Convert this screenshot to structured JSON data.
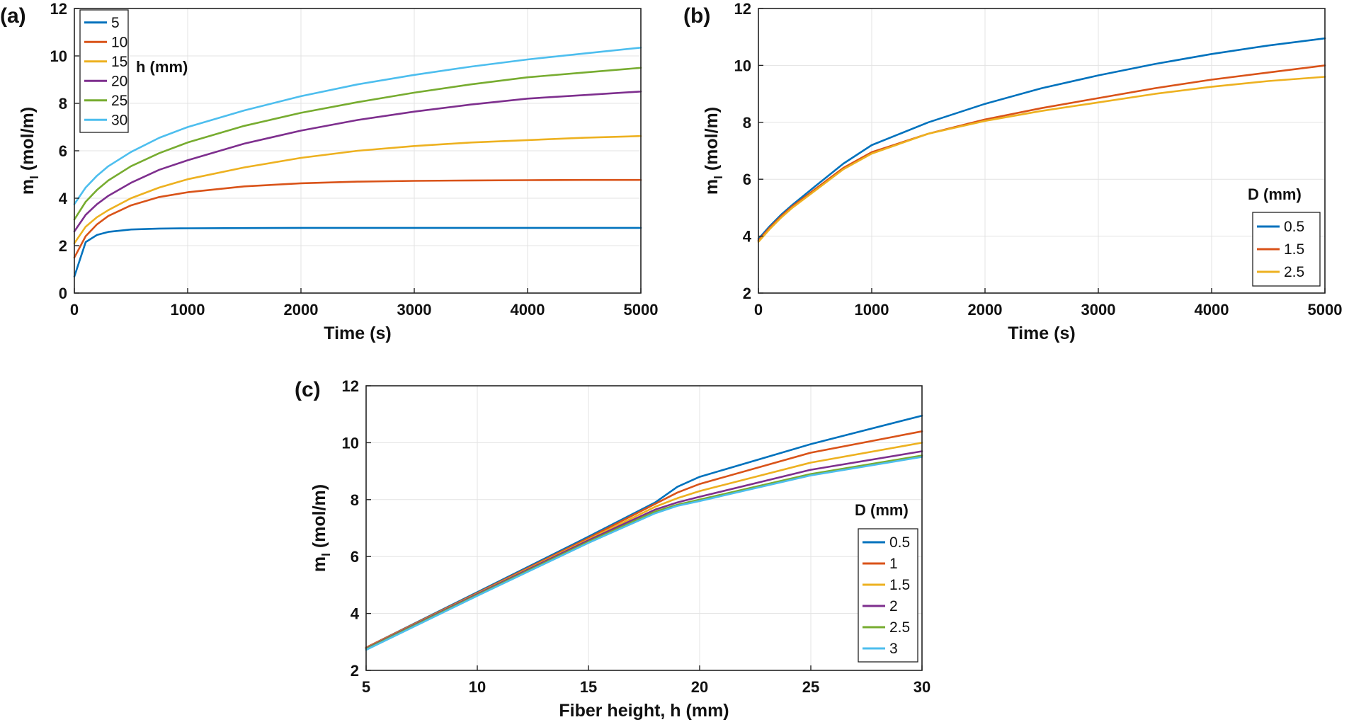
{
  "panels": [
    {
      "label": "(a)"
    },
    {
      "label": "(b)"
    },
    {
      "label": "(c)"
    }
  ],
  "chart_data": [
    {
      "type": "line",
      "panel": "(a)",
      "xlabel": "Time (s)",
      "ylabel": "m",
      "ylabel_sub": "l",
      "ylabel_unit": "(mol/m)",
      "xlim": [
        0,
        5000
      ],
      "ylim": [
        0,
        12
      ],
      "xticks": [
        0,
        1000,
        2000,
        3000,
        4000,
        5000
      ],
      "yticks": [
        0,
        2,
        4,
        6,
        8,
        10,
        12
      ],
      "grid": true,
      "legend_title": "h (mm)",
      "legend_position": "top-left",
      "x": [
        0,
        100,
        200,
        300,
        500,
        750,
        1000,
        1500,
        2000,
        2500,
        3000,
        3500,
        4000,
        4500,
        5000
      ],
      "series": [
        {
          "name": "5",
          "color": "#0072BD",
          "values": [
            0.7,
            2.15,
            2.45,
            2.58,
            2.68,
            2.72,
            2.73,
            2.74,
            2.75,
            2.75,
            2.75,
            2.75,
            2.75,
            2.75,
            2.75
          ]
        },
        {
          "name": "10",
          "color": "#D95319",
          "values": [
            1.5,
            2.4,
            2.9,
            3.25,
            3.7,
            4.05,
            4.25,
            4.5,
            4.63,
            4.7,
            4.73,
            4.75,
            4.76,
            4.77,
            4.77
          ]
        },
        {
          "name": "15",
          "color": "#EDB120",
          "values": [
            2.1,
            2.8,
            3.2,
            3.5,
            4.0,
            4.45,
            4.8,
            5.3,
            5.7,
            6.0,
            6.2,
            6.35,
            6.45,
            6.55,
            6.62
          ]
        },
        {
          "name": "20",
          "color": "#7E2F8E",
          "values": [
            2.6,
            3.3,
            3.75,
            4.1,
            4.65,
            5.2,
            5.6,
            6.3,
            6.85,
            7.3,
            7.65,
            7.95,
            8.2,
            8.35,
            8.5
          ]
        },
        {
          "name": "25",
          "color": "#77AC30",
          "values": [
            3.1,
            3.85,
            4.35,
            4.75,
            5.35,
            5.9,
            6.35,
            7.05,
            7.6,
            8.05,
            8.45,
            8.8,
            9.1,
            9.3,
            9.5
          ]
        },
        {
          "name": "30",
          "color": "#4DBEEE",
          "values": [
            3.75,
            4.45,
            4.95,
            5.35,
            5.95,
            6.55,
            7.0,
            7.7,
            8.3,
            8.8,
            9.2,
            9.55,
            9.85,
            10.1,
            10.35
          ]
        }
      ]
    },
    {
      "type": "line",
      "panel": "(b)",
      "xlabel": "Time (s)",
      "ylabel": "m",
      "ylabel_sub": "l",
      "ylabel_unit": "(mol/m)",
      "xlim": [
        0,
        5000
      ],
      "ylim": [
        2,
        12
      ],
      "xticks": [
        0,
        1000,
        2000,
        3000,
        4000,
        5000
      ],
      "yticks": [
        2,
        4,
        6,
        8,
        10,
        12
      ],
      "grid": true,
      "legend_title": "D (mm)",
      "legend_position": "bottom-right",
      "x": [
        0,
        100,
        200,
        300,
        500,
        750,
        1000,
        1500,
        2000,
        2500,
        3000,
        3500,
        4000,
        4500,
        5000
      ],
      "series": [
        {
          "name": "0.5",
          "color": "#0072BD",
          "values": [
            3.9,
            4.35,
            4.75,
            5.1,
            5.75,
            6.55,
            7.2,
            8.0,
            8.65,
            9.2,
            9.65,
            10.05,
            10.4,
            10.7,
            10.95
          ]
        },
        {
          "name": "1.5",
          "color": "#D95319",
          "values": [
            3.85,
            4.3,
            4.7,
            5.05,
            5.65,
            6.4,
            6.95,
            7.6,
            8.1,
            8.5,
            8.85,
            9.2,
            9.5,
            9.75,
            10.0
          ]
        },
        {
          "name": "2.5",
          "color": "#EDB120",
          "values": [
            3.8,
            4.25,
            4.65,
            5.0,
            5.6,
            6.35,
            6.9,
            7.6,
            8.05,
            8.4,
            8.7,
            9.0,
            9.25,
            9.45,
            9.6
          ]
        }
      ]
    },
    {
      "type": "line",
      "panel": "(c)",
      "xlabel": "Fiber height, h (mm)",
      "ylabel": "m",
      "ylabel_sub": "l",
      "ylabel_unit": "(mol/m)",
      "xlim": [
        5,
        30
      ],
      "ylim": [
        2,
        12
      ],
      "xticks": [
        5,
        10,
        15,
        20,
        25,
        30
      ],
      "yticks": [
        2,
        4,
        6,
        8,
        10,
        12
      ],
      "grid": true,
      "legend_title": "D (mm)",
      "legend_position": "bottom-right",
      "x": [
        5,
        10,
        15,
        18,
        19,
        20,
        25,
        30
      ],
      "series": [
        {
          "name": "0.5",
          "color": "#0072BD",
          "values": [
            2.8,
            4.75,
            6.7,
            7.9,
            8.45,
            8.8,
            9.95,
            10.95
          ]
        },
        {
          "name": "1",
          "color": "#D95319",
          "values": [
            2.8,
            4.72,
            6.65,
            7.85,
            8.25,
            8.55,
            9.65,
            10.4
          ]
        },
        {
          "name": "1.5",
          "color": "#EDB120",
          "values": [
            2.78,
            4.7,
            6.6,
            7.75,
            8.05,
            8.3,
            9.3,
            10.0
          ]
        },
        {
          "name": "2",
          "color": "#7E2F8E",
          "values": [
            2.77,
            4.68,
            6.57,
            7.65,
            7.9,
            8.1,
            9.05,
            9.7
          ]
        },
        {
          "name": "2.5",
          "color": "#77AC30",
          "values": [
            2.75,
            4.65,
            6.52,
            7.58,
            7.82,
            8.0,
            8.9,
            9.55
          ]
        },
        {
          "name": "3",
          "color": "#4DBEEE",
          "values": [
            2.72,
            4.62,
            6.48,
            7.52,
            7.78,
            7.95,
            8.85,
            9.5
          ]
        }
      ]
    }
  ]
}
